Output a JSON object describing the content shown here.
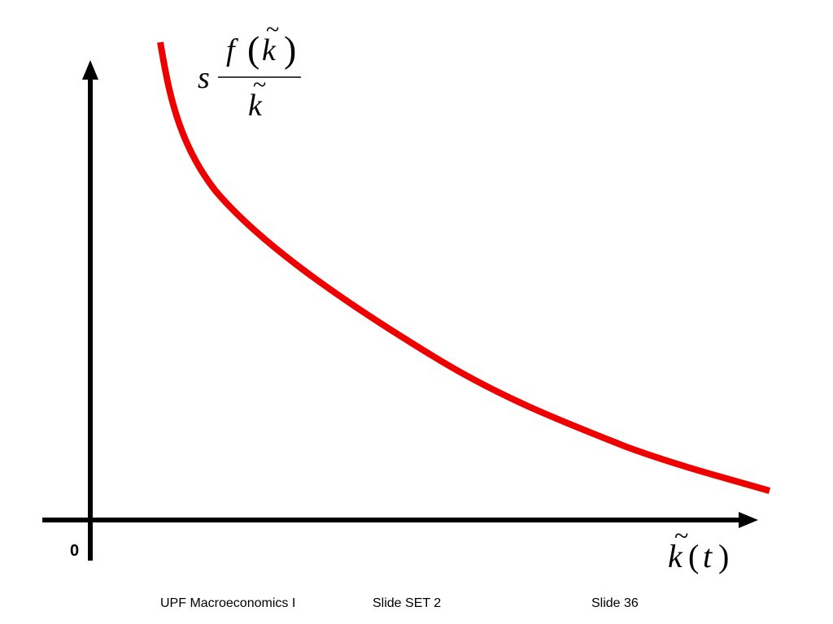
{
  "diagram": {
    "curve_label": {
      "coefficient": "s",
      "numerator_func": "f",
      "numerator_open": "(",
      "numerator_var": "k",
      "numerator_close": ")",
      "denominator_var": "k",
      "tilde": "~"
    },
    "x_axis_label": {
      "var": "k",
      "tilde": "~",
      "open": "(",
      "arg": "t",
      "close": ")"
    },
    "origin_label": "0",
    "colors": {
      "curve": "#ee0000",
      "axes": "#000000"
    }
  },
  "footer": {
    "course": "UPF Macroeconomics I",
    "slide_set": "Slide SET 2",
    "slide_number": "Slide 36"
  }
}
